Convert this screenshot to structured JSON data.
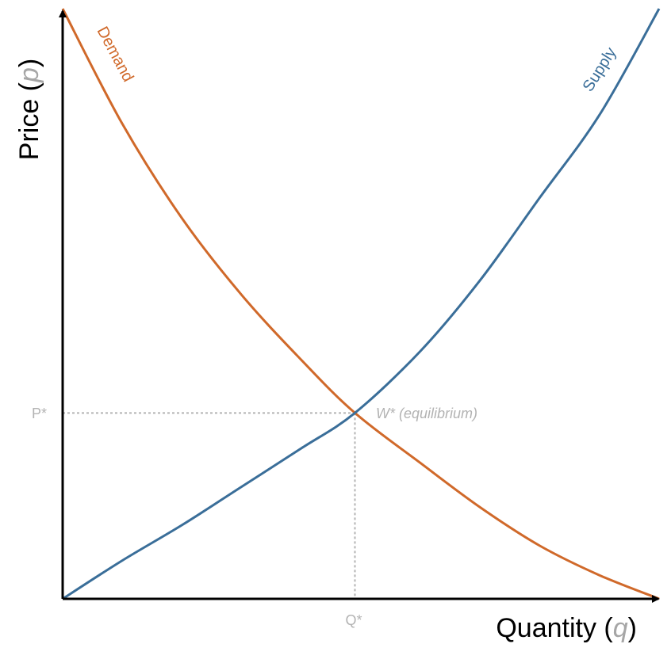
{
  "chart_data": {
    "type": "line",
    "xlabel": {
      "prefix": "Quantity (",
      "variable": "q",
      "suffix": ")"
    },
    "ylabel": {
      "prefix": "Price (",
      "variable": "p",
      "suffix": ")"
    },
    "xlim": [
      0,
      100
    ],
    "ylim": [
      0,
      100
    ],
    "grid": false,
    "colors": {
      "demand": "#d0692a",
      "supply": "#3a6e99",
      "guide": "#b3b3b3",
      "axis": "#000000"
    },
    "series": [
      {
        "name": "Demand",
        "x": [
          0,
          10,
          20,
          30,
          40,
          49,
          60,
          70,
          80,
          90,
          100
        ],
        "y": [
          100,
          80.5,
          64.5,
          51.5,
          40.5,
          31.5,
          23,
          15.5,
          9,
          4,
          0
        ]
      },
      {
        "name": "Supply",
        "x": [
          0,
          10,
          20,
          30,
          40,
          49,
          60,
          70,
          80,
          90,
          100
        ],
        "y": [
          0,
          6.5,
          12.5,
          19,
          25.5,
          31.5,
          42,
          54,
          68,
          82,
          100
        ]
      }
    ],
    "equilibrium": {
      "x": 49,
      "y": 31.5,
      "label": "W* (equilibrium)",
      "x_tick_label": "Q*",
      "y_tick_label": "P*"
    }
  }
}
